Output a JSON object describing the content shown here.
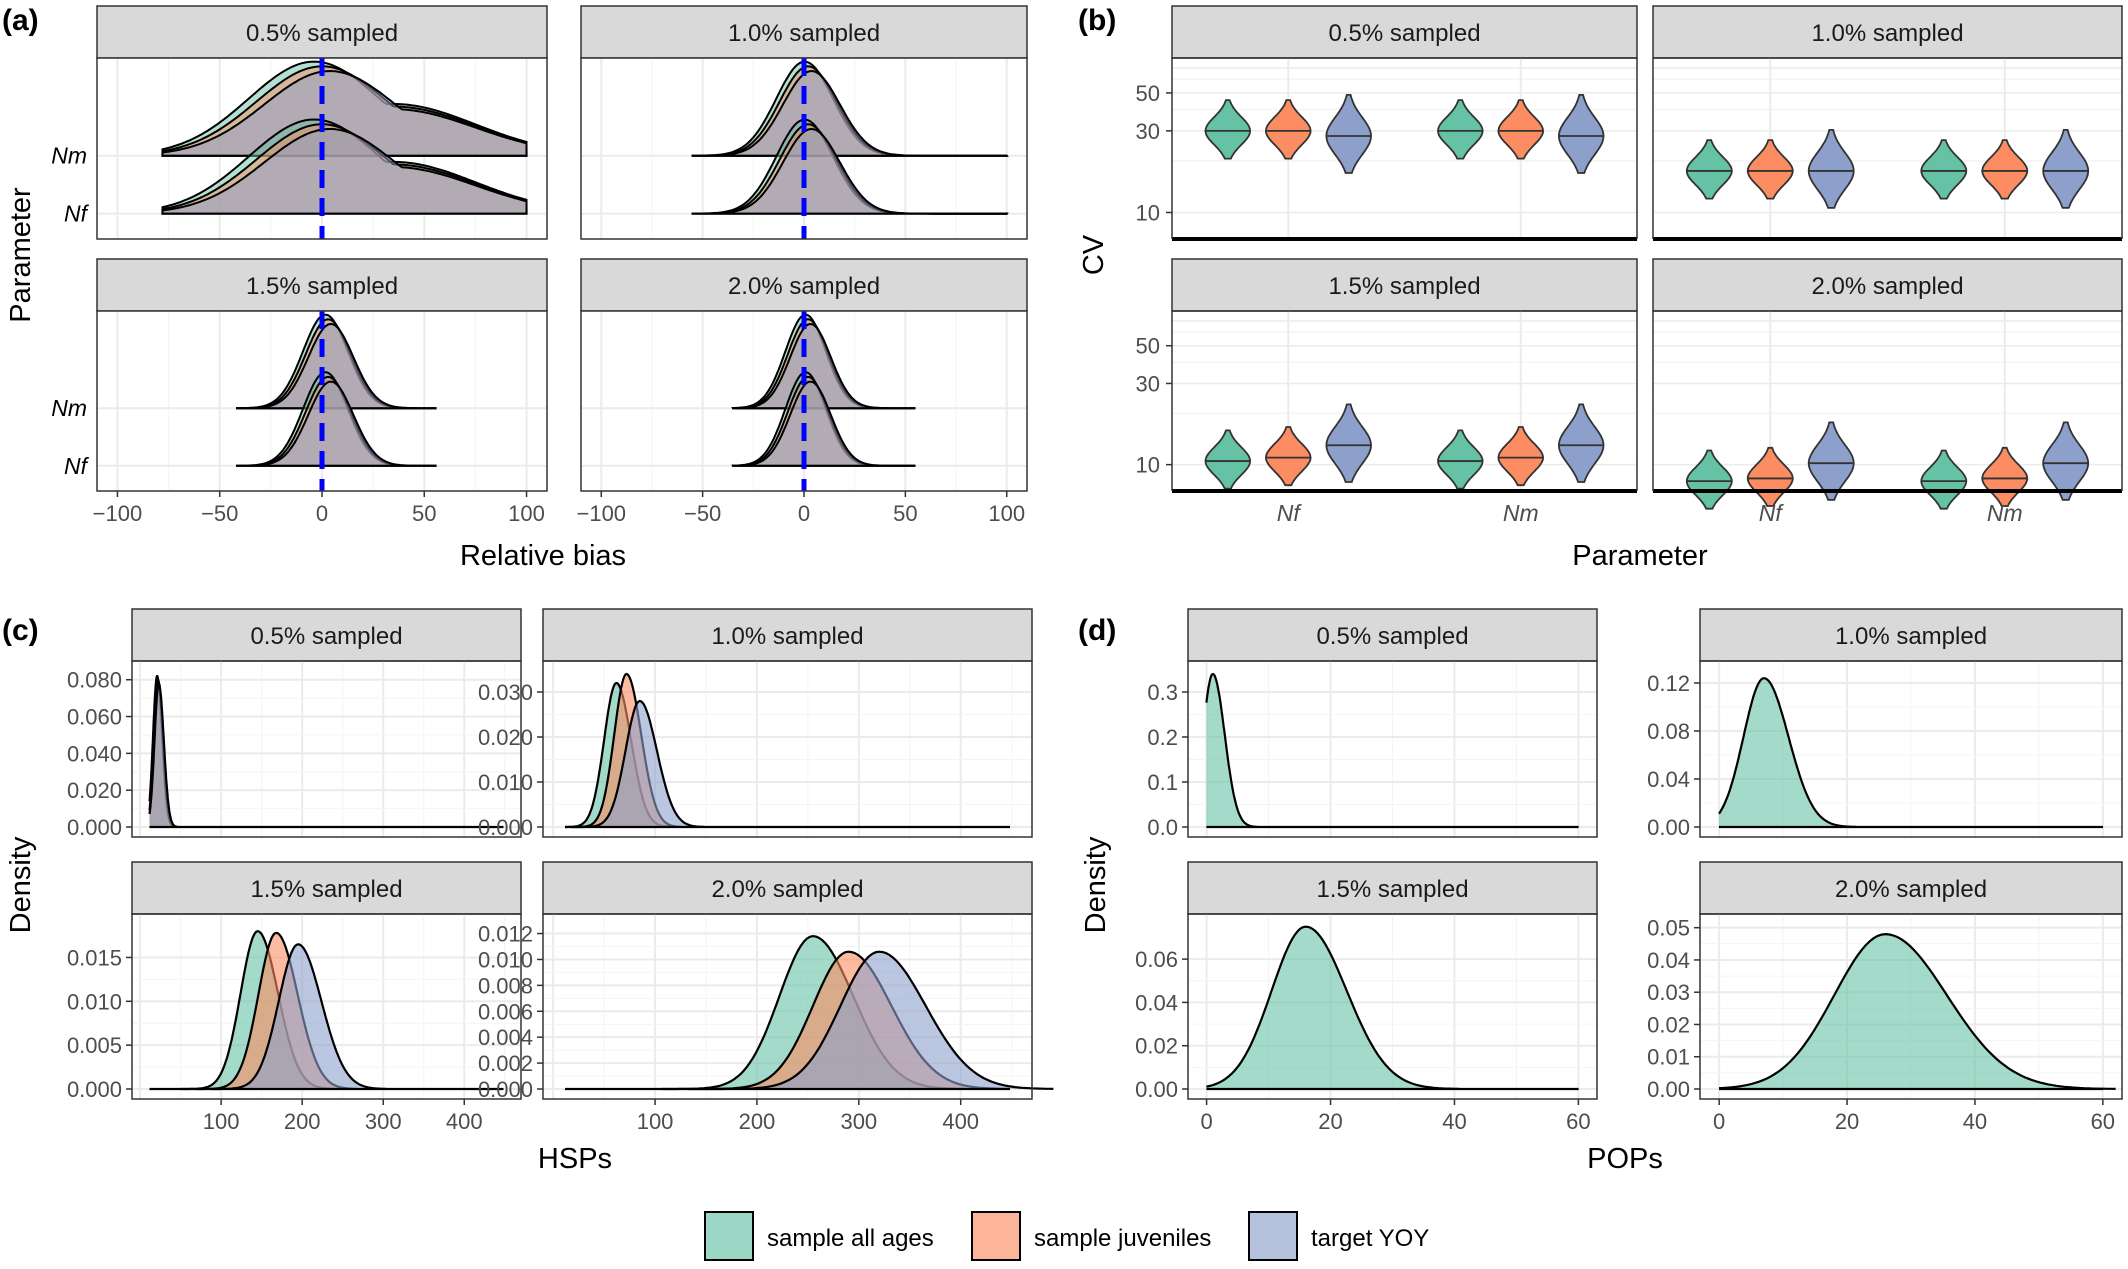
{
  "figure": {
    "panel_letters": [
      "(a)",
      "(b)",
      "(c)",
      "(d)"
    ],
    "legend": [
      {
        "label": "sample all ages",
        "color": "#66c2a5"
      },
      {
        "label": "sample juveniles",
        "color": "#fc8d62"
      },
      {
        "label": "target YOY",
        "color": "#8da0cb"
      }
    ],
    "colors": {
      "strip_bg": "#d9d9d9",
      "grid": "#ebebeb",
      "bias_line": "#0000ff",
      "outline": "#000000"
    }
  },
  "chart_data": [
    {
      "id": "a",
      "type": "ridgeline",
      "xlabel": "Relative bias",
      "ylabel": "Parameter",
      "facets": [
        "0.5% sampled",
        "1.0% sampled",
        "1.5% sampled",
        "2.0% sampled"
      ],
      "categories": [
        "Nm",
        "Nf"
      ],
      "xlim": [
        -110,
        110
      ],
      "xticks": [
        -100,
        -50,
        0,
        50,
        100
      ],
      "reference_line_x": 0,
      "series": [
        "sample all ages",
        "sample juveniles",
        "target YOY"
      ],
      "distributions": {
        "0.5% sampled": {
          "range": [
            -78,
            100
          ],
          "mode": 0,
          "spread": 32,
          "right_tail": true
        },
        "1.0% sampled": {
          "range": [
            -55,
            100
          ],
          "mode": 2,
          "spread": 14
        },
        "1.5% sampled": {
          "range": [
            -42,
            56
          ],
          "mode": 3,
          "spread": 11
        },
        "2.0% sampled": {
          "range": [
            -35,
            55
          ],
          "mode": 2,
          "spread": 10
        }
      }
    },
    {
      "id": "b",
      "type": "violin",
      "xlabel": "Parameter",
      "ylabel": "CV",
      "y_scale": "log",
      "facets": [
        "0.5% sampled",
        "1.0% sampled",
        "1.5% sampled",
        "2.0% sampled"
      ],
      "categories": [
        "Nf",
        "Nm"
      ],
      "yticks": [
        10,
        30,
        50
      ],
      "ylim": [
        7,
        80
      ],
      "series": [
        "sample all ages",
        "sample juveniles",
        "target YOY"
      ],
      "medians": {
        "0.5% sampled": {
          "Nf": [
            30,
            30,
            28
          ],
          "Nm": [
            30,
            30,
            28
          ]
        },
        "1.0% sampled": {
          "Nf": [
            17.5,
            17.5,
            17.5
          ],
          "Nm": [
            17.5,
            17.5,
            17.5
          ]
        },
        "1.5% sampled": {
          "Nf": [
            10.5,
            11,
            13
          ],
          "Nm": [
            10.5,
            11,
            13
          ]
        },
        "2.0% sampled": {
          "Nf": [
            8,
            8.3,
            10.2
          ],
          "Nm": [
            8,
            8.3,
            10.2
          ]
        }
      }
    },
    {
      "id": "c",
      "type": "density",
      "xlabel": "HSPs",
      "ylabel": "Density",
      "xlim": [
        -10,
        470
      ],
      "xticks": [
        100,
        200,
        300,
        400
      ],
      "series": [
        "sample all ages",
        "sample juveniles",
        "target YOY"
      ],
      "facets": [
        {
          "title": "0.5% sampled",
          "yticks": [
            "0.000",
            "0.020",
            "0.040",
            "0.060",
            "0.080"
          ],
          "ymax": 0.088,
          "curves": [
            {
              "series": "sample all ages",
              "peak_x": 21,
              "peak_y": 0.082,
              "sd": 5
            },
            {
              "series": "sample juveniles",
              "peak_x": 22,
              "peak_y": 0.08,
              "sd": 5
            },
            {
              "series": "target YOY",
              "peak_x": 23,
              "peak_y": 0.078,
              "sd": 5.2
            }
          ]
        },
        {
          "title": "1.0% sampled",
          "yticks": [
            "0.000",
            "0.010",
            "0.020",
            "0.030"
          ],
          "ymax": 0.036,
          "curves": [
            {
              "series": "sample all ages",
              "peak_x": 62,
              "peak_y": 0.032,
              "sd": 12
            },
            {
              "series": "sample juveniles",
              "peak_x": 72,
              "peak_y": 0.034,
              "sd": 12
            },
            {
              "series": "target YOY",
              "peak_x": 85,
              "peak_y": 0.028,
              "sd": 14
            }
          ]
        },
        {
          "title": "1.5% sampled",
          "yticks": [
            "0.000",
            "0.005",
            "0.010",
            "0.015"
          ],
          "ymax": 0.0195,
          "curves": [
            {
              "series": "sample all ages",
              "peak_x": 145,
              "peak_y": 0.018,
              "sd": 21
            },
            {
              "series": "sample juveniles",
              "peak_x": 168,
              "peak_y": 0.0178,
              "sd": 22
            },
            {
              "series": "target YOY",
              "peak_x": 195,
              "peak_y": 0.0165,
              "sd": 24
            }
          ]
        },
        {
          "title": "2.0% sampled",
          "yticks": [
            "0.000",
            "0.002",
            "0.004",
            "0.006",
            "0.008",
            "0.010",
            "0.012"
          ],
          "ymax": 0.0132,
          "curves": [
            {
              "series": "sample all ages",
              "peak_x": 255,
              "peak_y": 0.0118,
              "sd": 33
            },
            {
              "series": "sample juveniles",
              "peak_x": 290,
              "peak_y": 0.0106,
              "sd": 35
            },
            {
              "series": "target YOY",
              "peak_x": 320,
              "peak_y": 0.0106,
              "sd": 38
            }
          ]
        }
      ]
    },
    {
      "id": "d",
      "type": "density",
      "xlabel": "POPs",
      "ylabel": "Density",
      "xlim": [
        -3,
        63
      ],
      "xticks": [
        0,
        20,
        40,
        60
      ],
      "series": [
        "sample all ages"
      ],
      "facets": [
        {
          "title": "0.5% sampled",
          "yticks": [
            "0.0",
            "0.1",
            "0.2",
            "0.3"
          ],
          "ymax": 0.36,
          "curves": [
            {
              "series": "sample all ages",
              "peak_x": 1,
              "peak_y": 0.34,
              "sd": 1.6
            }
          ]
        },
        {
          "title": "1.0% sampled",
          "yticks": [
            "0.00",
            "0.04",
            "0.08",
            "0.12"
          ],
          "ymax": 0.135,
          "curves": [
            {
              "series": "sample all ages",
              "peak_x": 7,
              "peak_y": 0.124,
              "sd": 3.2
            }
          ]
        },
        {
          "title": "1.5% sampled",
          "yticks": [
            "0.00",
            "0.02",
            "0.04",
            "0.06"
          ],
          "ymax": 0.079,
          "curves": [
            {
              "series": "sample all ages",
              "peak_x": 16,
              "peak_y": 0.075,
              "sd": 5.5
            }
          ]
        },
        {
          "title": "2.0% sampled",
          "yticks": [
            "0.00",
            "0.01",
            "0.02",
            "0.03",
            "0.04",
            "0.05"
          ],
          "ymax": 0.053,
          "curves": [
            {
              "series": "sample all ages",
              "peak_x": 26,
              "peak_y": 0.048,
              "sd": 8
            }
          ]
        }
      ]
    }
  ]
}
